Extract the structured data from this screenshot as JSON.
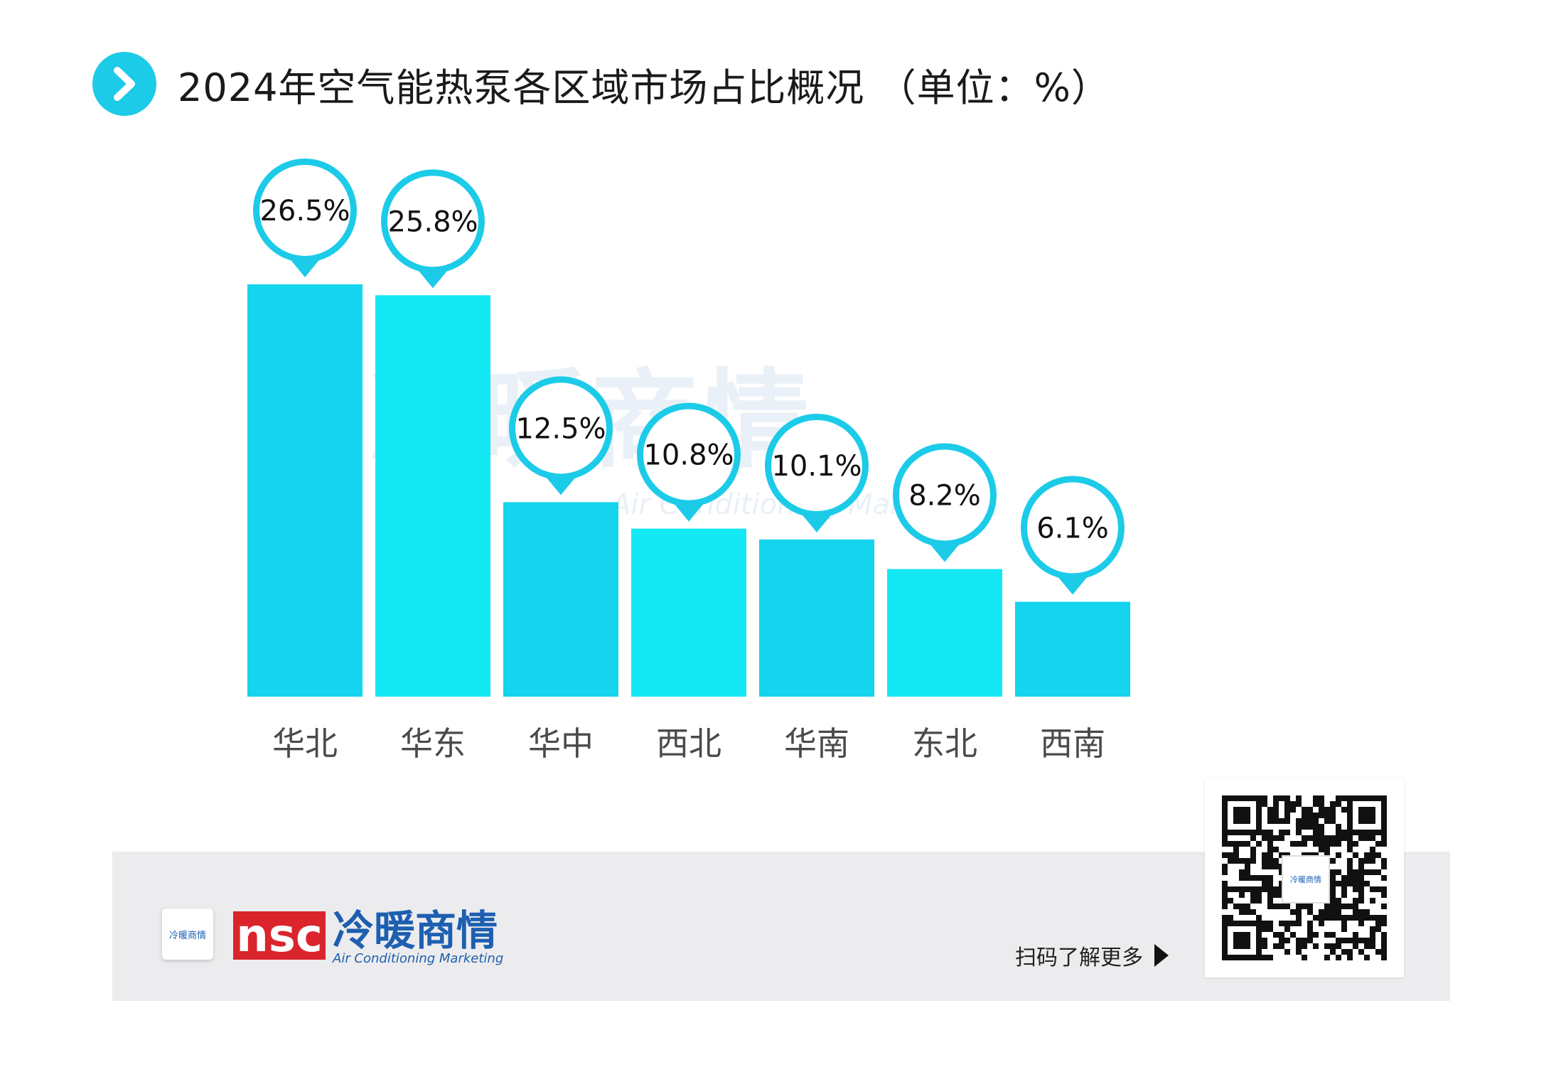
{
  "title": "2024年空气能热泵各区域市场占比概况 （单位：%）",
  "chart_data": {
    "type": "bar",
    "title": "2024年空气能热泵各区域市场占比概况 （单位：%）",
    "categories": [
      "华北",
      "华东",
      "华中",
      "西北",
      "华南",
      "东北",
      "西南"
    ],
    "values": [
      26.5,
      25.8,
      12.5,
      10.8,
      10.1,
      8.2,
      6.1
    ],
    "value_labels": [
      "26.5%",
      "25.8%",
      "12.5%",
      "10.8%",
      "10.1%",
      "8.2%",
      "6.1%"
    ],
    "unit": "%",
    "grid": false,
    "legend": "none",
    "colors": [
      "#14d4ee",
      "#14e8f5"
    ]
  },
  "watermark": {
    "cn": "冷暖商情",
    "en": "Air Conditioning Marketing"
  },
  "footer": {
    "brand_mark": "nsc",
    "brand_cn": "冷暖商情",
    "brand_en": "Air Conditioning Marketing",
    "app_tile_text": "冷暖商情",
    "scan_text": "扫码了解更多",
    "qr_logo_text": "冷暖商情"
  },
  "colors": {
    "accent": "#1ccbe8",
    "brand_red": "#d9252b",
    "brand_blue": "#1d5fb0"
  }
}
